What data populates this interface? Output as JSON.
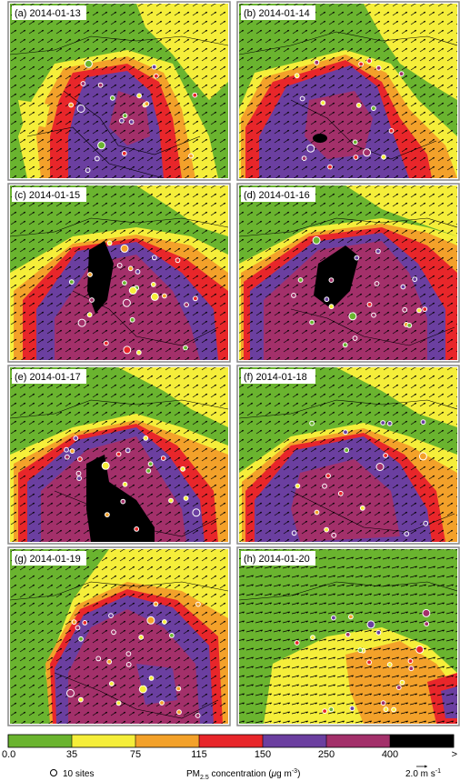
{
  "panels": [
    {
      "label": "(a) 2014-01-13",
      "site_count": 20
    },
    {
      "label": "(b) 2014-01-14",
      "site_count": 18
    },
    {
      "label": "(c) 2014-01-15",
      "site_count": 26
    },
    {
      "label": "(d) 2014-01-16",
      "site_count": 22
    },
    {
      "label": "(e) 2014-01-17",
      "site_count": 22
    },
    {
      "label": "(f) 2014-01-18",
      "site_count": 20
    },
    {
      "label": "(g) 2014-01-19",
      "site_count": 26
    },
    {
      "label": "(h) 2014-01-20",
      "site_count": 24
    }
  ],
  "colorbar": {
    "ticks": [
      "0.0",
      "35",
      "75",
      "115",
      "150",
      "250",
      "400",
      ">"
    ],
    "colors": [
      "#6ab42f",
      "#f5ee3a",
      "#f3a12a",
      "#e8262a",
      "#6b3fa0",
      "#a3306a",
      "#000000"
    ]
  },
  "legend": {
    "sites_label": "10 sites",
    "title_main": "PM",
    "title_sub": "2.5",
    "title_rest": " concentration (",
    "title_unit_mu": "μ",
    "title_unit_rest": "g m",
    "title_unit_exp": "-3",
    "title_close": ")",
    "wind_label": "2.0 m s",
    "wind_exp": "-1"
  },
  "chart_data": {
    "type": "heatmap",
    "panels": [
      "(a) 2014-01-13",
      "(b) 2014-01-14",
      "(c) 2014-01-15",
      "(d) 2014-01-16",
      "(e) 2014-01-17",
      "(f) 2014-01-18",
      "(g) 2014-01-19",
      "(h) 2014-01-20"
    ],
    "colorbar_bins": [
      {
        "min": 0,
        "max": 35,
        "color": "#6ab42f"
      },
      {
        "min": 35,
        "max": 75,
        "color": "#f5ee3a"
      },
      {
        "min": 75,
        "max": 115,
        "color": "#f3a12a"
      },
      {
        "min": 115,
        "max": 150,
        "color": "#e8262a"
      },
      {
        "min": 150,
        "max": 250,
        "color": "#6b3fa0"
      },
      {
        "min": 250,
        "max": 400,
        "color": "#a3306a"
      },
      {
        "min": 400,
        "max": null,
        "color": "#000000"
      }
    ],
    "colorbar_title": "PM2.5 concentration (μg m-3)",
    "wind_reference": "2.0 m s-1",
    "site_marker_legend": "10 sites"
  }
}
